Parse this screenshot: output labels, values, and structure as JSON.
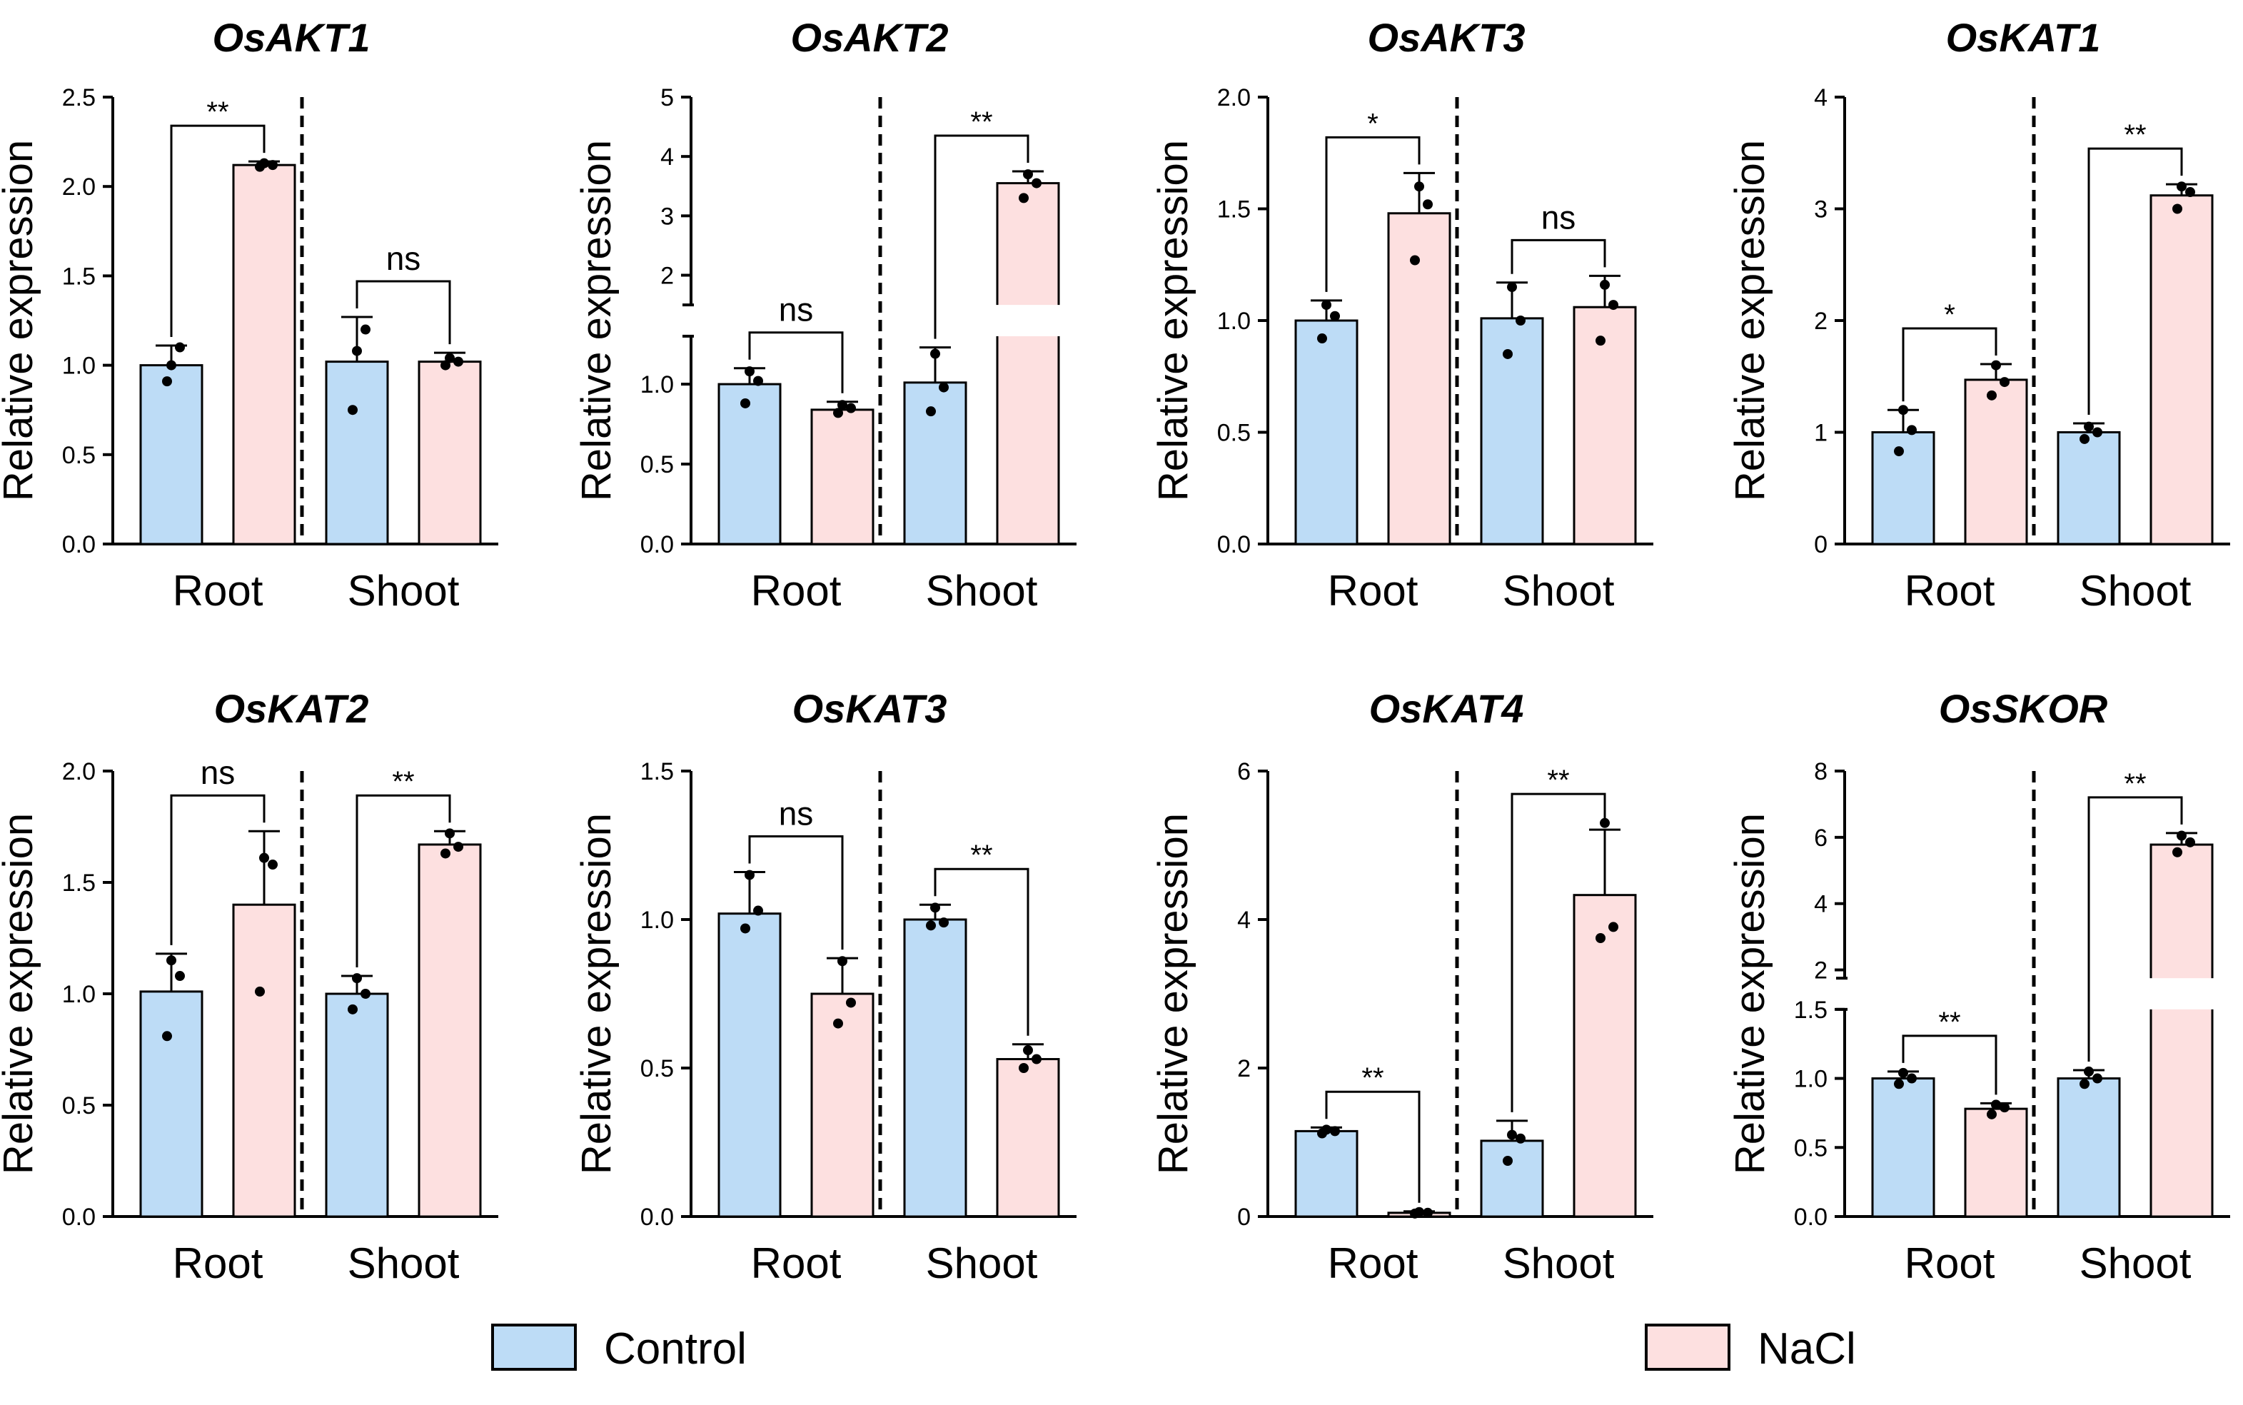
{
  "figure": {
    "y_label": "Relative expression",
    "group_labels": [
      "Root",
      "Shoot"
    ],
    "colors": {
      "control": "#bddcf6",
      "nacl": "#fde0e0",
      "line": "#000000"
    }
  },
  "legend": {
    "items": [
      {
        "key": "control",
        "label": "Control",
        "color": "#bddcf6"
      },
      {
        "key": "nacl",
        "label": "NaCl",
        "color": "#fde0e0"
      }
    ]
  },
  "chart_data": [
    {
      "type": "bar",
      "title": "OsAKT1",
      "ylabel": "Relative expression",
      "ylim": [
        0,
        2.5
      ],
      "yticks": [
        0.0,
        0.5,
        1.0,
        1.5,
        2.0,
        2.5
      ],
      "ytick_labels": [
        "0.0",
        "0.5",
        "1.0",
        "1.5",
        "2.0",
        "2.5"
      ],
      "categories": [
        "Root",
        "Shoot"
      ],
      "divider": true,
      "series": [
        {
          "name": "Control",
          "values": [
            1.0,
            1.02
          ],
          "errors": [
            0.11,
            0.25
          ],
          "points": [
            [
              1.0,
              1.1,
              0.91
            ],
            [
              1.08,
              1.2,
              0.75
            ]
          ]
        },
        {
          "name": "NaCl",
          "values": [
            2.12,
            1.02
          ],
          "errors": [
            0.02,
            0.05
          ],
          "points": [
            [
              2.13,
              2.12,
              2.11
            ],
            [
              1.04,
              1.02,
              1.0
            ]
          ]
        }
      ],
      "significance": [
        "**",
        "ns"
      ]
    },
    {
      "type": "bar",
      "title": "OsAKT2",
      "ylabel": "Relative expression",
      "broken_axis": {
        "lower": [
          0,
          1.3
        ],
        "upper": [
          1.5,
          5
        ],
        "upper_ticks": [
          2,
          3,
          4,
          5
        ],
        "upper_tick_labels": [
          "2",
          "3",
          "4",
          "5"
        ]
      },
      "yticks": [
        0.0,
        0.5,
        1.0
      ],
      "ytick_labels": [
        "0.0",
        "0.5",
        "1.0"
      ],
      "categories": [
        "Root",
        "Shoot"
      ],
      "divider": true,
      "series": [
        {
          "name": "Control",
          "values": [
            1.0,
            1.01
          ],
          "errors": [
            0.1,
            0.22
          ],
          "points": [
            [
              1.08,
              1.02,
              0.88
            ],
            [
              1.19,
              0.98,
              0.83
            ]
          ]
        },
        {
          "name": "NaCl",
          "values": [
            0.84,
            3.55
          ],
          "errors": [
            0.05,
            0.2
          ],
          "points": [
            [
              0.87,
              0.85,
              0.82
            ],
            [
              3.7,
              3.55,
              3.3
            ]
          ]
        }
      ],
      "significance": [
        "ns",
        "**"
      ]
    },
    {
      "type": "bar",
      "title": "OsAKT3",
      "ylabel": "Relative expression",
      "ylim": [
        0,
        2.0
      ],
      "yticks": [
        0.0,
        0.5,
        1.0,
        1.5,
        2.0
      ],
      "ytick_labels": [
        "0.0",
        "0.5",
        "1.0",
        "1.5",
        "2.0"
      ],
      "categories": [
        "Root",
        "Shoot"
      ],
      "divider": true,
      "series": [
        {
          "name": "Control",
          "values": [
            1.0,
            1.01
          ],
          "errors": [
            0.09,
            0.16
          ],
          "points": [
            [
              1.07,
              1.02,
              0.92
            ],
            [
              1.15,
              1.0,
              0.85
            ]
          ]
        },
        {
          "name": "NaCl",
          "values": [
            1.48,
            1.06
          ],
          "errors": [
            0.18,
            0.14
          ],
          "points": [
            [
              1.6,
              1.52,
              1.27
            ],
            [
              1.16,
              1.07,
              0.91
            ]
          ]
        }
      ],
      "significance": [
        "*",
        "ns"
      ]
    },
    {
      "type": "bar",
      "title": "OsKAT1",
      "ylabel": "Relative expression",
      "ylim": [
        0,
        4
      ],
      "yticks": [
        0,
        1,
        2,
        3,
        4
      ],
      "ytick_labels": [
        "0",
        "1",
        "2",
        "3",
        "4"
      ],
      "categories": [
        "Root",
        "Shoot"
      ],
      "divider": true,
      "series": [
        {
          "name": "Control",
          "values": [
            1.0,
            1.0
          ],
          "errors": [
            0.2,
            0.08
          ],
          "points": [
            [
              1.2,
              1.02,
              0.83
            ],
            [
              1.05,
              1.0,
              0.94
            ]
          ]
        },
        {
          "name": "NaCl",
          "values": [
            1.47,
            3.12
          ],
          "errors": [
            0.14,
            0.1
          ],
          "points": [
            [
              1.6,
              1.45,
              1.33
            ],
            [
              3.2,
              3.15,
              3.0
            ]
          ]
        }
      ],
      "significance": [
        "*",
        "**"
      ]
    },
    {
      "type": "bar",
      "title": "OsKAT2",
      "ylabel": "Relative expression",
      "ylim": [
        0,
        2.0
      ],
      "yticks": [
        0.0,
        0.5,
        1.0,
        1.5,
        2.0
      ],
      "ytick_labels": [
        "0.0",
        "0.5",
        "1.0",
        "1.5",
        "2.0"
      ],
      "categories": [
        "Root",
        "Shoot"
      ],
      "divider": true,
      "series": [
        {
          "name": "Control",
          "values": [
            1.01,
            1.0
          ],
          "errors": [
            0.17,
            0.08
          ],
          "points": [
            [
              1.15,
              1.08,
              0.81
            ],
            [
              1.07,
              1.0,
              0.93
            ]
          ]
        },
        {
          "name": "NaCl",
          "values": [
            1.4,
            1.67
          ],
          "errors": [
            0.33,
            0.06
          ],
          "points": [
            [
              1.61,
              1.58,
              1.01
            ],
            [
              1.72,
              1.66,
              1.63
            ]
          ]
        }
      ],
      "significance": [
        "ns",
        "**"
      ]
    },
    {
      "type": "bar",
      "title": "OsKAT3",
      "ylabel": "Relative expression",
      "ylim": [
        0,
        1.5
      ],
      "yticks": [
        0.0,
        0.5,
        1.0,
        1.5
      ],
      "ytick_labels": [
        "0.0",
        "0.5",
        "1.0",
        "1.5"
      ],
      "categories": [
        "Root",
        "Shoot"
      ],
      "divider": true,
      "series": [
        {
          "name": "Control",
          "values": [
            1.02,
            1.0
          ],
          "errors": [
            0.14,
            0.05
          ],
          "points": [
            [
              1.15,
              1.03,
              0.97
            ],
            [
              1.04,
              0.99,
              0.98
            ]
          ]
        },
        {
          "name": "NaCl",
          "values": [
            0.75,
            0.53
          ],
          "errors": [
            0.12,
            0.05
          ],
          "points": [
            [
              0.86,
              0.72,
              0.65
            ],
            [
              0.56,
              0.53,
              0.5
            ]
          ]
        }
      ],
      "significance": [
        "ns",
        "**"
      ]
    },
    {
      "type": "bar",
      "title": "OsKAT4",
      "ylabel": "Relative expression",
      "ylim": [
        0,
        6
      ],
      "yticks": [
        0,
        2,
        4,
        6
      ],
      "ytick_labels": [
        "0",
        "2",
        "4",
        "6"
      ],
      "categories": [
        "Root",
        "Shoot"
      ],
      "divider": true,
      "series": [
        {
          "name": "Control",
          "values": [
            1.15,
            1.02
          ],
          "errors": [
            0.05,
            0.27
          ],
          "points": [
            [
              1.17,
              1.15,
              1.12
            ],
            [
              1.1,
              1.05,
              0.75
            ]
          ]
        },
        {
          "name": "NaCl",
          "values": [
            0.05,
            4.33
          ],
          "errors": [
            0.02,
            0.88
          ],
          "points": [
            [
              0.06,
              0.05,
              0.04
            ],
            [
              5.3,
              3.9,
              3.75
            ]
          ]
        }
      ],
      "significance": [
        "**",
        "**"
      ]
    },
    {
      "type": "bar",
      "title": "OsSKOR",
      "ylabel": "Relative expression",
      "broken_axis": {
        "lower": [
          0,
          1.5
        ],
        "upper": [
          1.75,
          8
        ],
        "upper_ticks": [
          2,
          4,
          6,
          8
        ],
        "upper_tick_labels": [
          "2",
          "4",
          "6",
          "8"
        ]
      },
      "yticks": [
        0.0,
        0.5,
        1.0,
        1.5
      ],
      "ytick_labels": [
        "0.0",
        "0.5",
        "1.0",
        "1.5"
      ],
      "categories": [
        "Root",
        "Shoot"
      ],
      "divider": true,
      "series": [
        {
          "name": "Control",
          "values": [
            1.0,
            1.0
          ],
          "errors": [
            0.05,
            0.06
          ],
          "points": [
            [
              1.04,
              1.0,
              0.96
            ],
            [
              1.05,
              1.0,
              0.96
            ]
          ]
        },
        {
          "name": "NaCl",
          "values": [
            0.78,
            5.78
          ],
          "errors": [
            0.04,
            0.35
          ],
          "points": [
            [
              0.81,
              0.79,
              0.74
            ],
            [
              6.05,
              5.85,
              5.55
            ]
          ]
        }
      ],
      "significance": [
        "**",
        "**"
      ]
    }
  ]
}
